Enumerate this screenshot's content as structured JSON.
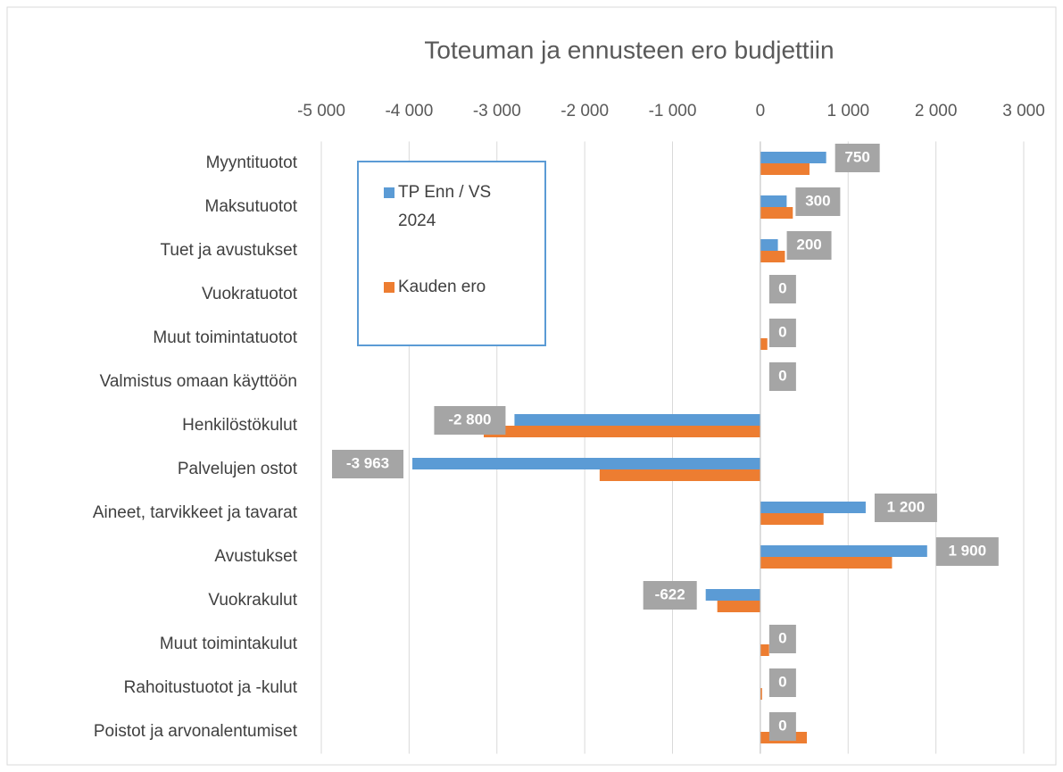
{
  "chart_data": {
    "type": "barh",
    "title": "Toteuman ja ennusteen ero budjettiin",
    "categories": [
      "Myyntituotot",
      "Maksutuotot",
      "Tuet ja avustukset",
      "Vuokratuotot",
      "Muut toimintatuotot",
      "Valmistus omaan käyttöön",
      "Henkilöstökulut",
      "Palvelujen ostot",
      "Aineet, tarvikkeet ja tavarat",
      "Avustukset",
      "Vuokrakulut",
      "Muut toimintakulut",
      "Rahoitustuotot ja -kulut",
      "Poistot ja arvonalentumiset"
    ],
    "series": [
      {
        "name": "TP Enn / VS 2024",
        "color": "#5b9bd5",
        "values": [
          750,
          300,
          200,
          0,
          0,
          0,
          -2800,
          -3963,
          1200,
          1900,
          -622,
          0,
          0,
          0
        ],
        "value_labels": [
          "750",
          "300",
          "200",
          "0",
          "0",
          "0",
          "-2 800",
          "-3 963",
          "1 200",
          "1 900",
          "-622",
          "0",
          "0",
          "0"
        ]
      },
      {
        "name": "Kauden ero",
        "color": "#ed7d31",
        "values": [
          560,
          370,
          280,
          0,
          80,
          0,
          -3150,
          -1830,
          720,
          1500,
          -490,
          100,
          20,
          530
        ]
      }
    ],
    "xlim": [
      -5000,
      3000
    ],
    "xticks": [
      {
        "value": -5000,
        "label": "-5 000"
      },
      {
        "value": -4000,
        "label": "-4 000"
      },
      {
        "value": -3000,
        "label": "-3 000"
      },
      {
        "value": -2000,
        "label": "-2 000"
      },
      {
        "value": -1000,
        "label": "-1 000"
      },
      0,
      {
        "value": 1000,
        "label": "1 000"
      },
      {
        "value": 2000,
        "label": "2 000"
      },
      {
        "value": 3000,
        "label": "3 000"
      }
    ],
    "grid": true,
    "legend": "upper left"
  }
}
